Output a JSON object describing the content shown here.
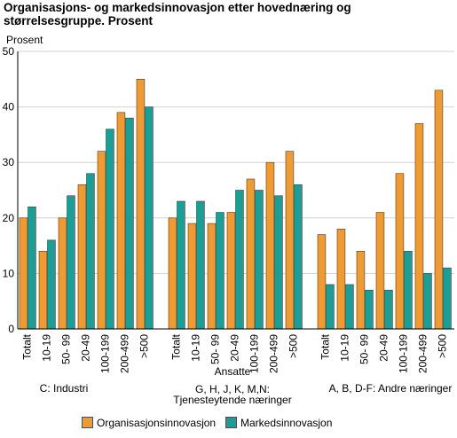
{
  "title": "Organisasjons- og markedsinnovasjon etter hovednæring og størrelsesgruppe. Prosent",
  "chart_data": {
    "type": "bar",
    "ylabel": "Prosent",
    "xlabel": "Ansatte",
    "ylim": [
      0,
      50
    ],
    "yticks": [
      0,
      10,
      20,
      30,
      40,
      50
    ],
    "grid": true,
    "legend_position": "bottom",
    "categories": [
      "Totalt",
      "10-19",
      "50- 99",
      "20-49",
      "100-199",
      "200-499",
      ">500"
    ],
    "groups": [
      {
        "name": "C: Industri",
        "series": [
          {
            "name": "Organisasjonsinnovasjon",
            "values": [
              20,
              14,
              20,
              26,
              32,
              39,
              45
            ]
          },
          {
            "name": "Markedsinnovasjon",
            "values": [
              22,
              16,
              24,
              28,
              36,
              38,
              40
            ]
          }
        ]
      },
      {
        "name": "G, H, J, K, M,N: Tjenesteytende næringer",
        "series": [
          {
            "name": "Organisasjonsinnovasjon",
            "values": [
              20,
              19,
              19,
              21,
              27,
              30,
              32
            ]
          },
          {
            "name": "Markedsinnovasjon",
            "values": [
              23,
              23,
              21,
              25,
              25,
              24,
              26
            ]
          }
        ]
      },
      {
        "name": "A, B, D-F: Andre næringer",
        "series": [
          {
            "name": "Organisasjonsinnovasjon",
            "values": [
              17,
              18,
              14,
              21,
              28,
              37,
              43
            ]
          },
          {
            "name": "Markedsinnovasjon",
            "values": [
              8,
              8,
              7,
              7,
              14,
              10,
              11
            ]
          }
        ]
      }
    ],
    "legend": [
      "Organisasjonsinnovasjon",
      "Markedsinnovasjon"
    ],
    "colors": {
      "Organisasjonsinnovasjon": "#f09b32",
      "Markedsinnovasjon": "#1a9e96",
      "bar_outline": "#3c3c3c",
      "grid": "#d2d2d2",
      "axis": "#000000"
    }
  }
}
